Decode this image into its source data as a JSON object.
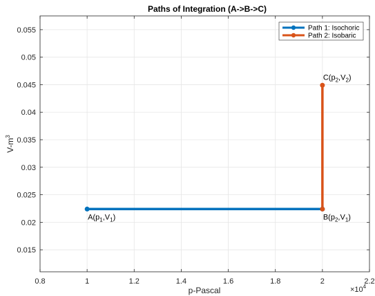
{
  "chart_data": {
    "type": "line",
    "title": "Paths of Integration (A->B->C)",
    "xlabel": "p-Pascal",
    "ylabel": "V-m",
    "ylabel_sup": "3",
    "x_exponent_base": "×10",
    "x_exponent_power": "4",
    "xlim": [
      0.8,
      2.2
    ],
    "ylim": [
      0.011,
      0.0575
    ],
    "x_ticks": [
      0.8,
      1,
      1.2,
      1.4,
      1.6,
      1.8,
      2,
      2.2
    ],
    "x_tick_labels": [
      "0.8",
      "1",
      "1.2",
      "1.4",
      "1.6",
      "1.8",
      "2",
      "2.2"
    ],
    "y_ticks": [
      0.015,
      0.02,
      0.025,
      0.03,
      0.035,
      0.04,
      0.045,
      0.05,
      0.055
    ],
    "y_tick_labels": [
      "0.015",
      "0.02",
      "0.025",
      "0.03",
      "0.035",
      "0.04",
      "0.045",
      "0.05",
      "0.055"
    ],
    "grid": true,
    "legend_position": "top-right",
    "series": [
      {
        "name": "Path 1: Isochoric",
        "color": "#0072BD",
        "x": [
          1,
          2
        ],
        "y": [
          0.0224,
          0.0224
        ]
      },
      {
        "name": "Path 2: Isobaric",
        "color": "#D95319",
        "x": [
          2,
          2
        ],
        "y": [
          0.0224,
          0.0449
        ]
      }
    ],
    "annotations": [
      {
        "x": 1,
        "y": 0.0224,
        "parts": [
          "A(p",
          "1",
          ",V",
          "1",
          ")"
        ],
        "anchor": "below"
      },
      {
        "x": 2,
        "y": 0.0224,
        "parts": [
          "B(p",
          "2",
          ",V",
          "1",
          ")"
        ],
        "anchor": "below"
      },
      {
        "x": 2,
        "y": 0.0449,
        "parts": [
          "C(p",
          "2",
          ",V",
          "2",
          ")"
        ],
        "anchor": "above"
      }
    ]
  }
}
